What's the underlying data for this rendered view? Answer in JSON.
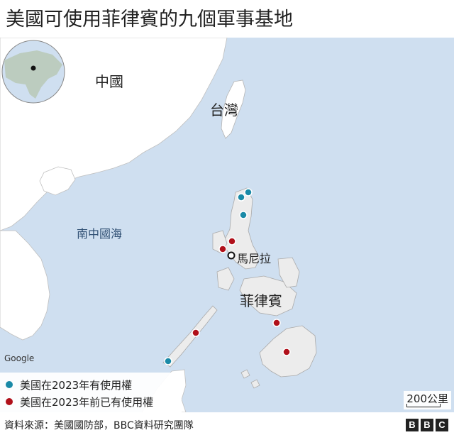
{
  "title": "美國可使用菲律賓的九個軍事基地",
  "map": {
    "labels": {
      "china": "中國",
      "taiwan": "台灣",
      "south_china_sea": "南中國海",
      "philippines": "菲律賓",
      "manila": "馬尼拉"
    },
    "attribution": "Google",
    "colors": {
      "sea": "#cfdff0",
      "land": "#ffffff",
      "focus_land": "#ececec",
      "border": "#b5b5b5",
      "access_2023": "#1a8aa7",
      "access_pre_2023": "#b0101a"
    }
  },
  "legend": {
    "items": [
      {
        "label": "美國在2023年有使用權",
        "color": "#1a8aa7"
      },
      {
        "label": "美國在2023年前已有使用權",
        "color": "#b0101a"
      }
    ]
  },
  "scale": {
    "label": "200公里"
  },
  "footer": {
    "source": "資料來源：美國國防部，BBC資料研究團隊",
    "logo": [
      "B",
      "B",
      "C"
    ]
  }
}
